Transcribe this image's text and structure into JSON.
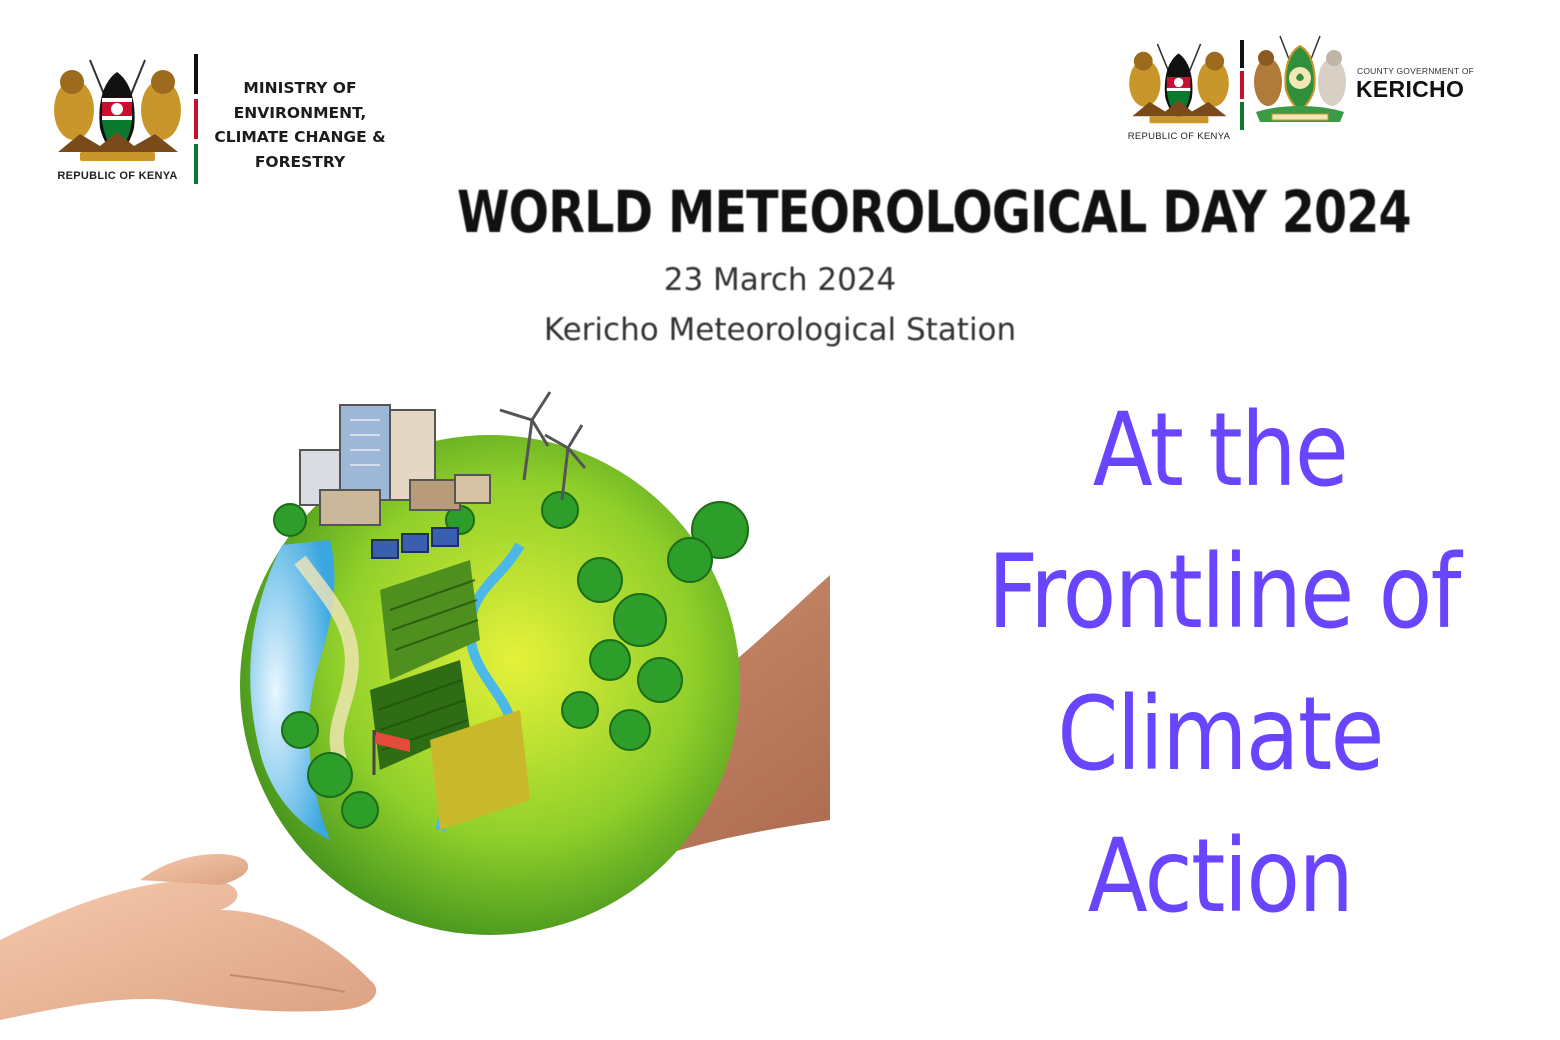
{
  "left_header": {
    "crest_caption": "REPUBLIC OF KENYA",
    "ministry_lines": [
      "MINISTRY OF",
      "ENVIRONMENT,",
      "CLIMATE CHANGE &",
      "FORESTRY"
    ]
  },
  "right_header": {
    "crest_caption": "REPUBLIC OF KENYA",
    "county_prefix": "COUNTY GOVERNMENT OF",
    "county_name": "KERICHO"
  },
  "event": {
    "title": "WORLD METEOROLOGICAL DAY 2024",
    "date": "23 March 2024",
    "venue": "Kericho Meteorological Station"
  },
  "theme_lines": [
    "At the",
    "Frontline of",
    "Climate",
    "Action"
  ],
  "colors": {
    "theme": "#6a45ff",
    "kenya_black": "#111111",
    "kenya_red": "#c8102e",
    "kenya_green": "#0a7a2f",
    "kenya_gold": "#c9962b"
  }
}
